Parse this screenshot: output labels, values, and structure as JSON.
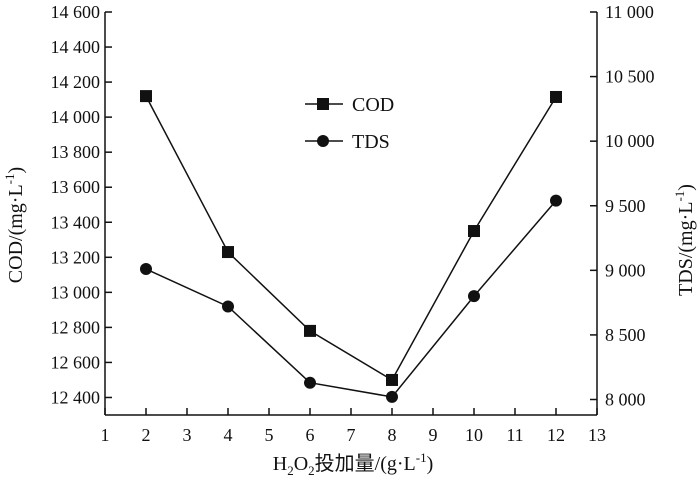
{
  "chart_data": {
    "type": "line",
    "xlabel": {
      "prefix": "H",
      "sub1": "2",
      "mid": "O",
      "sub2": "2",
      "suffix": "投加量/(g·L",
      "sup": "-1",
      "end": ")"
    },
    "ylabel_left": {
      "text": "COD/(mg·L",
      "sup": "-1",
      "end": ")"
    },
    "ylabel_right": {
      "text": "TDS/(mg·L",
      "sup": "-1",
      "end": ")"
    },
    "xlim": [
      1,
      13
    ],
    "x_ticks": [
      "1",
      "2",
      "3",
      "4",
      "5",
      "6",
      "7",
      "8",
      "9",
      "10",
      "11",
      "12",
      "13"
    ],
    "ylim_left": [
      12300,
      14600
    ],
    "y_ticks_left": [
      {
        "value": 12400,
        "label": "12 400"
      },
      {
        "value": 12600,
        "label": "12 600"
      },
      {
        "value": 12800,
        "label": "12 800"
      },
      {
        "value": 13000,
        "label": "13 000"
      },
      {
        "value": 13200,
        "label": "13 200"
      },
      {
        "value": 13400,
        "label": "13 400"
      },
      {
        "value": 13600,
        "label": "13 600"
      },
      {
        "value": 13800,
        "label": "13 800"
      },
      {
        "value": 14000,
        "label": "14 000"
      },
      {
        "value": 14200,
        "label": "14 200"
      },
      {
        "value": 14400,
        "label": "14 400"
      },
      {
        "value": 14600,
        "label": "14 600"
      }
    ],
    "ylim_right": [
      7880,
      11000
    ],
    "y_ticks_right": [
      {
        "value": 8000,
        "label": "8 000"
      },
      {
        "value": 8500,
        "label": "8 500"
      },
      {
        "value": 9000,
        "label": "9 000"
      },
      {
        "value": 9500,
        "label": "9 500"
      },
      {
        "value": 10000,
        "label": "10 000"
      },
      {
        "value": 10500,
        "label": "10 500"
      },
      {
        "value": 11000,
        "label": "11 000"
      }
    ],
    "series": [
      {
        "name": "COD",
        "axis": "left",
        "marker": "square",
        "x": [
          2,
          4,
          6,
          8,
          10,
          12
        ],
        "values": [
          14120,
          13230,
          12780,
          12500,
          13350,
          14115
        ]
      },
      {
        "name": "TDS",
        "axis": "right",
        "marker": "circle",
        "x": [
          2,
          4,
          6,
          8,
          10,
          12
        ],
        "values": [
          9010,
          8720,
          8130,
          8020,
          8800,
          9540
        ]
      }
    ],
    "legend_placement": "top-center",
    "grid": false
  }
}
